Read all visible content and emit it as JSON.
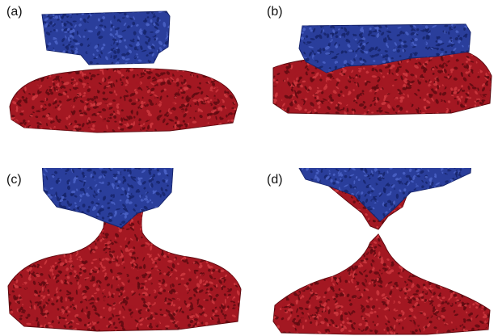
{
  "figure": {
    "panels": [
      {
        "id": "a",
        "label": "(a)"
      },
      {
        "id": "b",
        "label": "(b)"
      },
      {
        "id": "c",
        "label": "(c)"
      },
      {
        "id": "d",
        "label": "(d)"
      }
    ]
  },
  "colors": {
    "blue": "#2a3e9b",
    "blue_dark": "#16246b",
    "blue_light": "#4b63c7",
    "red": "#a31822",
    "red_dark": "#5e0a10",
    "red_light": "#cf3a40",
    "background": "#ffffff"
  }
}
